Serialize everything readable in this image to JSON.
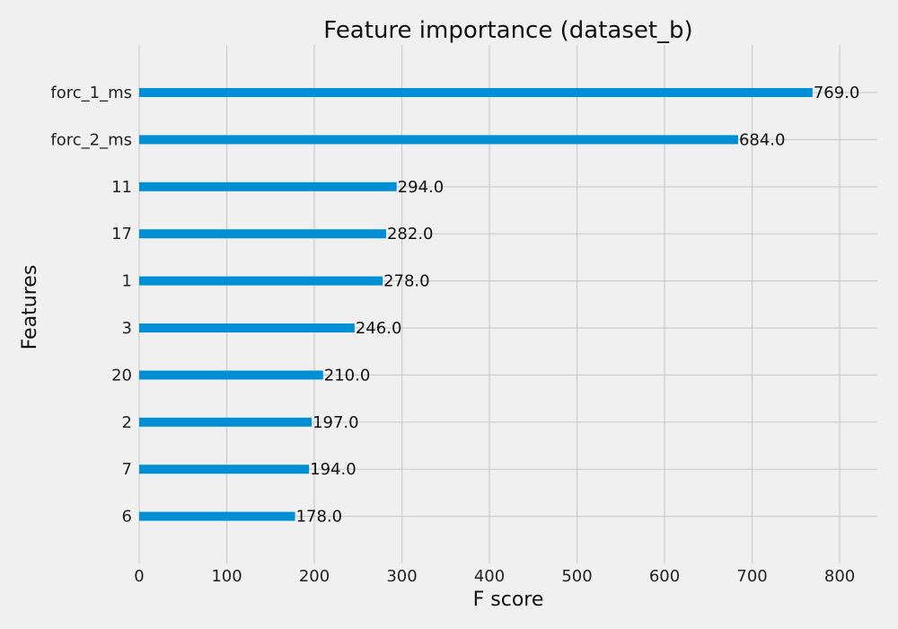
{
  "chart_data": {
    "type": "bar",
    "orientation": "horizontal",
    "title": "Feature importance (dataset_b)",
    "xlabel": "F score",
    "ylabel": "Features",
    "categories": [
      "forc_1_ms",
      "forc_2_ms",
      "11",
      "17",
      "1",
      "3",
      "20",
      "2",
      "7",
      "6"
    ],
    "values": [
      769,
      684,
      294,
      282,
      278,
      246,
      210,
      197,
      194,
      178
    ],
    "value_labels": [
      "769.0",
      "684.0",
      "294.0",
      "282.0",
      "278.0",
      "246.0",
      "210.0",
      "197.0",
      "194.0",
      "178.0"
    ],
    "xlim": [
      0,
      843
    ],
    "xticks": [
      0,
      100,
      200,
      300,
      400,
      500,
      600,
      700,
      800
    ],
    "grid": true,
    "bar_color": "#008fd5",
    "background_color": "#f0f0f0",
    "grid_color": "#cbcbcb"
  }
}
